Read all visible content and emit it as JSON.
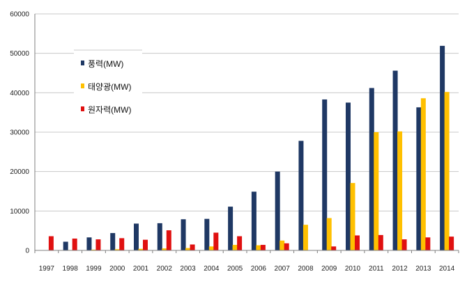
{
  "chart_data": {
    "type": "bar",
    "categories": [
      "1997",
      "1998",
      "1999",
      "2000",
      "2001",
      "2002",
      "2003",
      "2004",
      "2005",
      "2006",
      "2007",
      "2008",
      "2009",
      "2010",
      "2011",
      "2012",
      "2013",
      "2014"
    ],
    "series": [
      {
        "name": "풍력(MW)",
        "color": "#1f3864",
        "values": [
          0,
          2200,
          3300,
          4400,
          6800,
          6900,
          7900,
          8000,
          11100,
          14900,
          20000,
          27800,
          38300,
          37500,
          41200,
          45600,
          36300,
          51900
        ]
      },
      {
        "name": "태양광(MW)",
        "color": "#ffc000",
        "values": [
          0,
          100,
          200,
          300,
          400,
          500,
          600,
          1000,
          1400,
          1300,
          2500,
          6500,
          8200,
          17100,
          30000,
          30200,
          38600,
          40200
        ]
      },
      {
        "name": "원자력(MW)",
        "color": "#e01010",
        "values": [
          3600,
          3000,
          2800,
          3100,
          2700,
          5100,
          1500,
          4500,
          3600,
          1400,
          1800,
          0,
          1000,
          3800,
          3900,
          2800,
          3300,
          3500
        ]
      }
    ],
    "ylim": [
      0,
      60000
    ],
    "yticks": [
      0,
      10000,
      20000,
      30000,
      40000,
      50000,
      60000
    ],
    "grid": true,
    "legend_position": "top-left"
  }
}
